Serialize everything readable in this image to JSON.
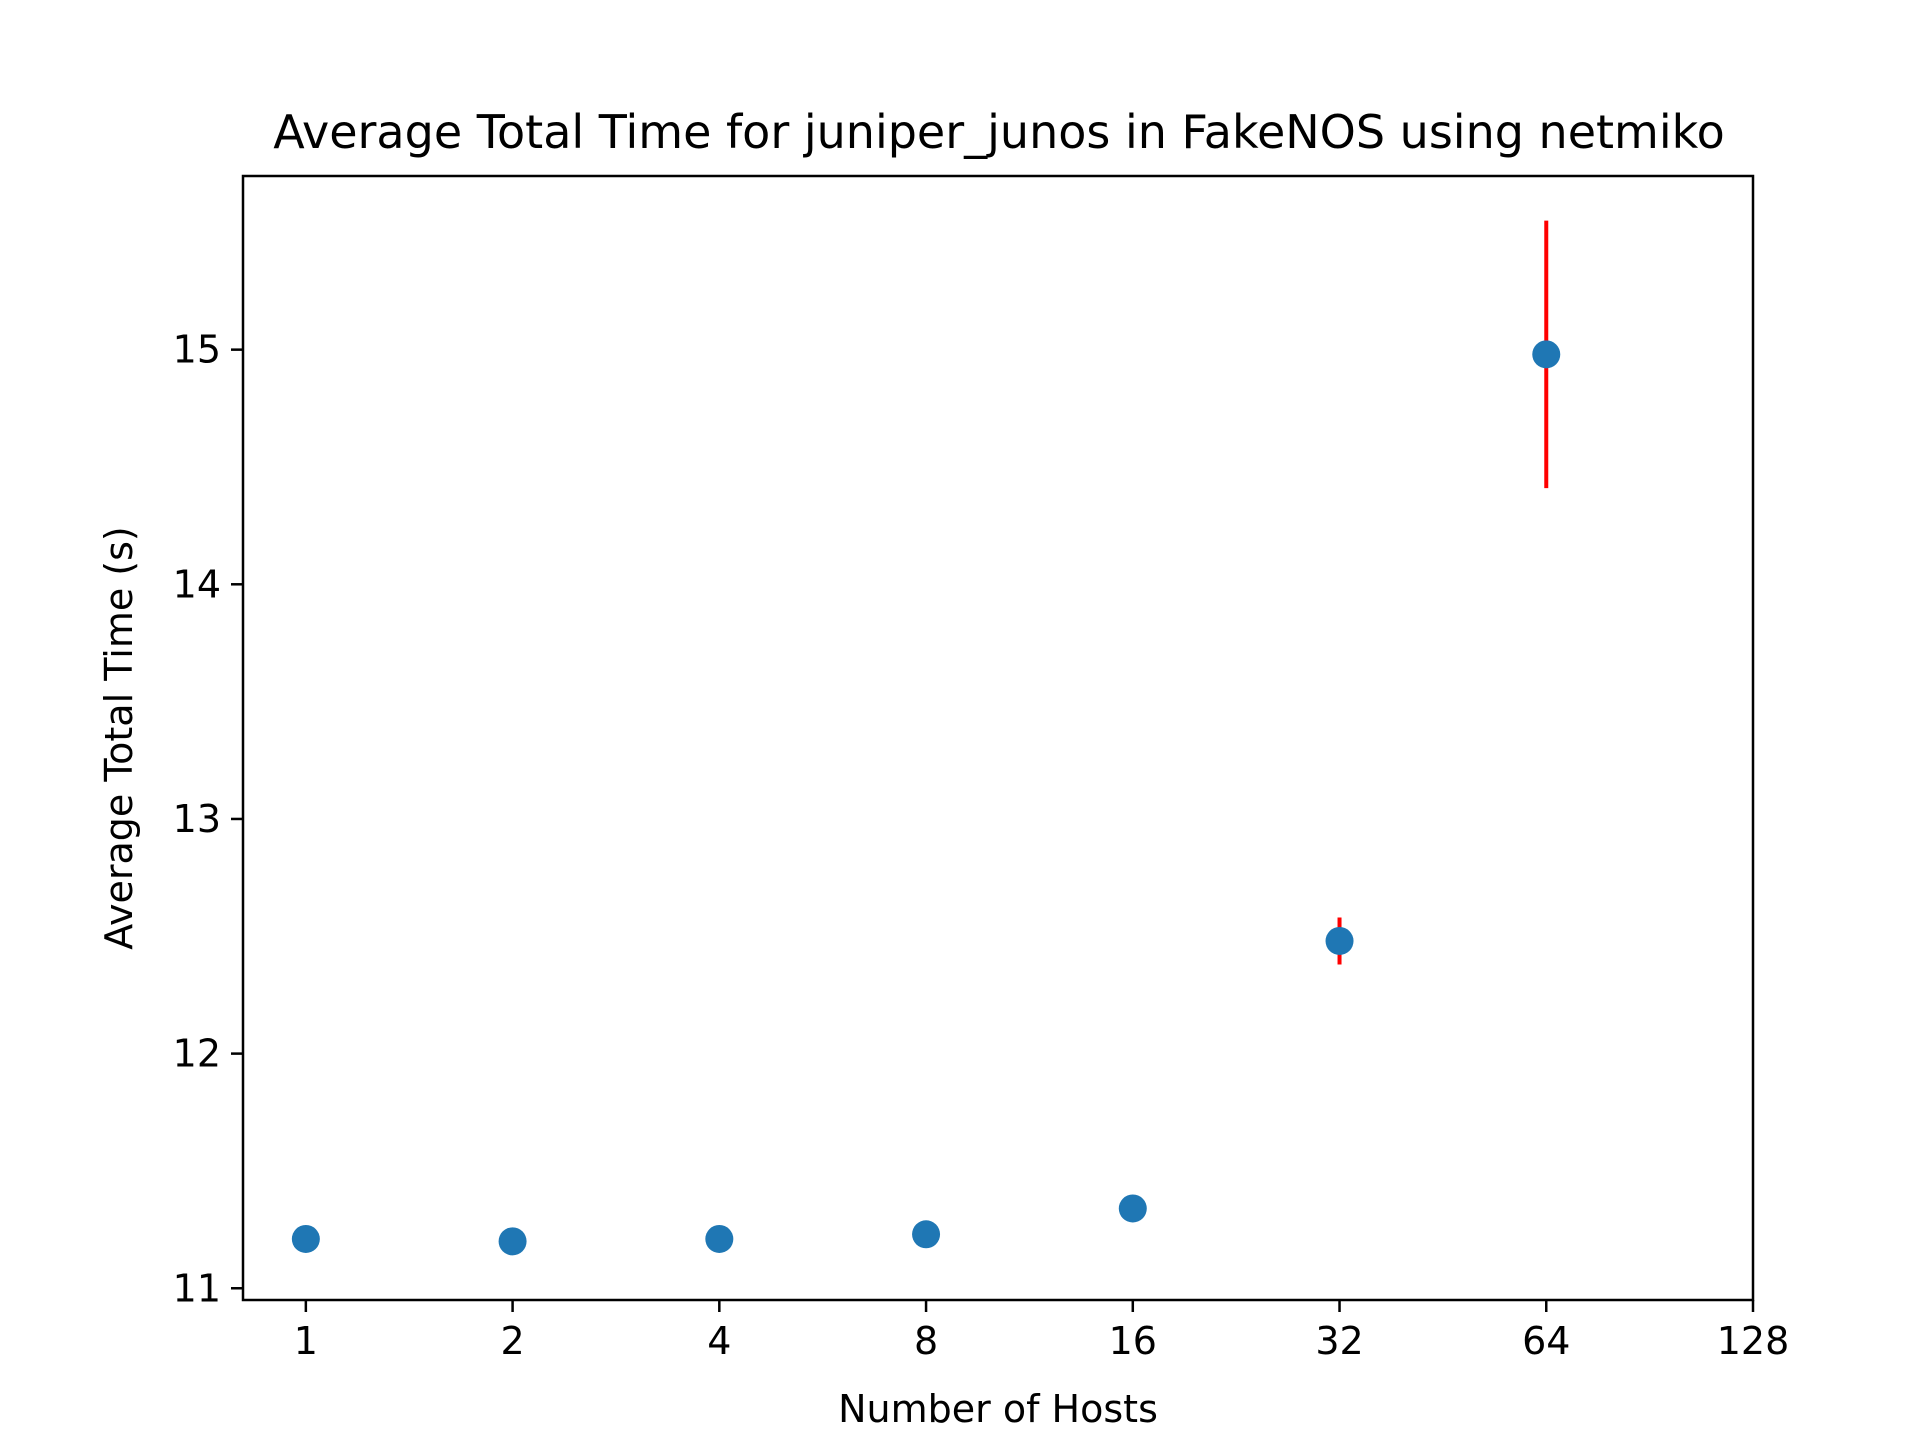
{
  "chart_data": {
    "type": "scatter",
    "title": "Average Total Time for juniper_junos in FakeNOS using netmiko",
    "xlabel": "Number of Hosts",
    "ylabel": "Average Total Time (s)",
    "x_scale": "log2",
    "x_ticks": [
      1,
      2,
      4,
      8,
      16,
      32,
      64,
      128
    ],
    "x_tick_labels": [
      "1",
      "2",
      "4",
      "8",
      "16",
      "32",
      "64",
      "128"
    ],
    "y_ticks": [
      11,
      12,
      13,
      14,
      15
    ],
    "y_tick_labels": [
      "11",
      "12",
      "13",
      "14",
      "15"
    ],
    "xlim": [
      0.81,
      128
    ],
    "ylim": [
      10.95,
      15.74
    ],
    "grid": false,
    "legend": "none",
    "point_color": "#1f77b4",
    "error_color": "#ff0000",
    "series": [
      {
        "x": [
          1,
          2,
          4,
          8,
          16,
          32,
          64
        ],
        "y": [
          11.21,
          11.2,
          11.21,
          11.23,
          11.34,
          12.48,
          14.98
        ],
        "error": [
          0.01,
          0.01,
          0.01,
          0.02,
          0.02,
          0.1,
          0.57
        ]
      }
    ]
  }
}
